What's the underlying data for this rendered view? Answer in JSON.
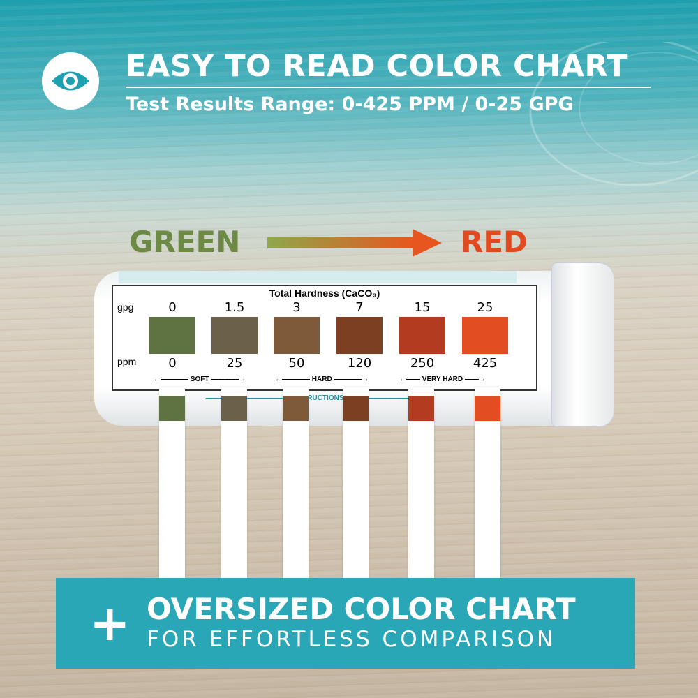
{
  "header": {
    "title": "EASY TO READ COLOR CHART",
    "subtitle": "Test Results Range: 0-425 PPM / 0-25 GPG",
    "icon": "eye-icon"
  },
  "scale": {
    "start_label": "GREEN",
    "end_label": "RED",
    "start_color": "#6c8a44",
    "end_color": "#e1491f"
  },
  "chart": {
    "title": "Total Hardness (CaCO₃)",
    "gpg_label": "gpg",
    "ppm_label": "ppm",
    "gpg": [
      "0",
      "1.5",
      "3",
      "7",
      "15",
      "25"
    ],
    "ppm": [
      "0",
      "25",
      "50",
      "120",
      "250",
      "425"
    ],
    "colors": [
      "#5e7242",
      "#6b6148",
      "#7f5a3a",
      "#7c3f22",
      "#b23b20",
      "#e34d22"
    ],
    "categories": [
      "SOFT",
      "HARD",
      "VERY HARD"
    ],
    "instructions_heading": "INSTRUCTIONS"
  },
  "banner": {
    "line1": "OVERSIZED COLOR CHART",
    "line2": "FOR EFFORTLESS COMPARISON",
    "icon": "plus-icon"
  }
}
